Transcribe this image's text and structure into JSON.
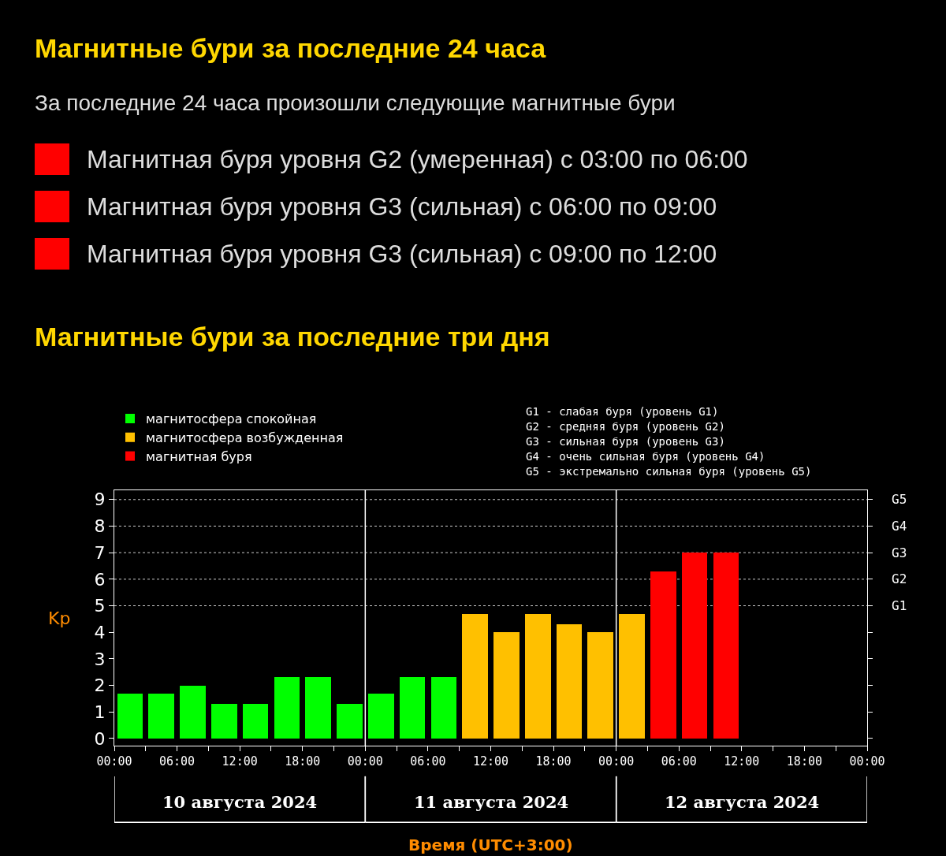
{
  "chart_data": [
    {
      "type": "other",
      "title": "Магнитные бури за последние 24 часа",
      "subtitle": "За последние 24 часа произошли следующие магнитные бури",
      "annotations": [
        "Магнитная буря уровня G2 (умеренная) с 03:00 по 06:00",
        "Магнитная буря уровня G3 (сильная) с 06:00 по 09:00",
        "Магнитная буря уровня G3 (сильная) с 09:00 по 12:00"
      ],
      "colors": [
        "#ff0000",
        "#ff0000",
        "#ff0000"
      ]
    },
    {
      "type": "bar",
      "title": "Магнитные бури за последние три дня",
      "xlabel": "Время (UTC+3:00)",
      "ylabel": "Kp",
      "x": [
        "2024-08-10T01:30",
        "2024-08-10T04:30",
        "2024-08-10T07:30",
        "2024-08-10T10:30",
        "2024-08-10T13:30",
        "2024-08-10T16:30",
        "2024-08-10T19:30",
        "2024-08-10T22:30",
        "2024-08-11T01:30",
        "2024-08-11T04:30",
        "2024-08-11T07:30",
        "2024-08-11T10:30",
        "2024-08-11T13:30",
        "2024-08-11T16:30",
        "2024-08-11T19:30",
        "2024-08-11T22:30",
        "2024-08-12T01:30",
        "2024-08-12T04:30",
        "2024-08-12T07:30",
        "2024-08-12T10:30"
      ],
      "series": [
        {
          "name": "магнитосфера спокойная",
          "color": "#00ff00",
          "values": [
            1.7,
            1.7,
            2.0,
            1.3,
            1.3,
            2.3,
            2.3,
            1.3,
            1.7,
            2.3,
            2.3,
            null,
            null,
            null,
            null,
            null,
            null,
            null,
            null,
            null
          ]
        },
        {
          "name": "магнитосфера возбужденная",
          "color": "#ffc000",
          "values": [
            null,
            null,
            null,
            null,
            null,
            null,
            null,
            null,
            null,
            null,
            null,
            4.7,
            4.0,
            4.7,
            4.3,
            4.0,
            4.7,
            null,
            null,
            null
          ]
        },
        {
          "name": "магнитная буря",
          "color": "#ff0000",
          "values": [
            null,
            null,
            null,
            null,
            null,
            null,
            null,
            null,
            null,
            null,
            null,
            null,
            null,
            null,
            null,
            null,
            null,
            6.3,
            7.0,
            7.0
          ]
        }
      ],
      "stacked": true,
      "xlim": [
        "2024-08-10T00:00",
        "2024-08-13T00:00"
      ],
      "xticks": [
        {
          "value": "2024-08-10T00:00",
          "label": "00:00"
        },
        {
          "value": "2024-08-10T03:00",
          "label": null
        },
        {
          "value": "2024-08-10T06:00",
          "label": "06:00"
        },
        {
          "value": "2024-08-10T09:00",
          "label": null
        },
        {
          "value": "2024-08-10T12:00",
          "label": "12:00"
        },
        {
          "value": "2024-08-10T15:00",
          "label": null
        },
        {
          "value": "2024-08-10T18:00",
          "label": "18:00"
        },
        {
          "value": "2024-08-10T21:00",
          "label": null
        },
        {
          "value": "2024-08-11T00:00",
          "label": "00:00"
        },
        {
          "value": "2024-08-11T03:00",
          "label": null
        },
        {
          "value": "2024-08-11T06:00",
          "label": "06:00"
        },
        {
          "value": "2024-08-11T09:00",
          "label": null
        },
        {
          "value": "2024-08-11T12:00",
          "label": "12:00"
        },
        {
          "value": "2024-08-11T15:00",
          "label": null
        },
        {
          "value": "2024-08-11T18:00",
          "label": "18:00"
        },
        {
          "value": "2024-08-11T21:00",
          "label": null
        },
        {
          "value": "2024-08-12T00:00",
          "label": "00:00"
        },
        {
          "value": "2024-08-12T03:00",
          "label": null
        },
        {
          "value": "2024-08-12T06:00",
          "label": "06:00"
        },
        {
          "value": "2024-08-12T09:00",
          "label": null
        },
        {
          "value": "2024-08-12T12:00",
          "label": "12:00"
        },
        {
          "value": "2024-08-12T15:00",
          "label": null
        },
        {
          "value": "2024-08-12T18:00",
          "label": "18:00"
        },
        {
          "value": "2024-08-12T21:00",
          "label": null
        },
        {
          "value": "2024-08-13T00:00",
          "label": "00:00"
        }
      ],
      "ylim": [
        -0.27,
        9.35
      ],
      "yticks": [
        0,
        1,
        2,
        3,
        4,
        5,
        6,
        7,
        8,
        9
      ],
      "ref_lines": [
        {
          "axis": "y",
          "value": 5,
          "label": "G1",
          "color": "#cccccc",
          "line_style": "dotted"
        },
        {
          "axis": "y",
          "value": 6,
          "label": "G2",
          "color": "#cccccc",
          "line_style": "dotted"
        },
        {
          "axis": "y",
          "value": 7,
          "label": "G3",
          "color": "#cccccc",
          "line_style": "dotted"
        },
        {
          "axis": "y",
          "value": 8,
          "label": "G4",
          "color": "#cccccc",
          "line_style": "dotted"
        },
        {
          "axis": "y",
          "value": 9,
          "label": "G5",
          "color": "#cccccc",
          "line_style": "dotted"
        },
        {
          "axis": "x",
          "value": "2024-08-11T00:00",
          "color": "#ffffff",
          "line_style": "solid"
        },
        {
          "axis": "x",
          "value": "2024-08-12T00:00",
          "color": "#ffffff",
          "line_style": "solid"
        }
      ],
      "annotations": [
        "10 августа 2024",
        "11 августа 2024",
        "12 августа 2024",
        "G1 - слабая буря (уровень G1)",
        "G2 - средняя буря (уровень G2)",
        "G3 - сильная буря (уровень G3)",
        "G4 - очень сильная буря (уровень G4)",
        "G5 - экстремально сильная буря (уровень G5)"
      ],
      "legend": "top left",
      "grid": false
    }
  ]
}
